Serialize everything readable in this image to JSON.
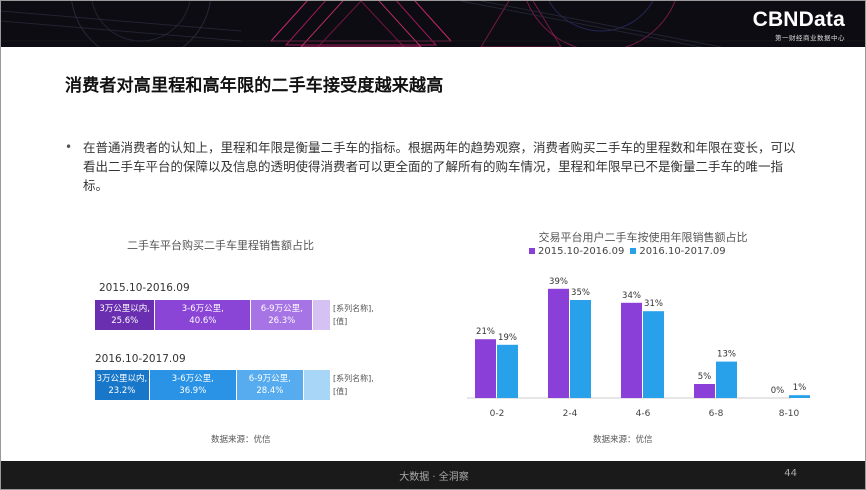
{
  "brand": {
    "name": "CBNData",
    "sub": "第一财经商业数据中心"
  },
  "title": "消费者对高里程和高年限的二手车接受度越来越高",
  "bullet": "在普通消费者的认知上，里程和年限是衡量二手车的指标。根据两年的趋势观察，消费者购买二手车的里程数和年限在变长，可以看出二手车平台的保障以及信息的透明使得消费者可以更全面的了解所有的购车情况，里程和年限早已不是衡量二手车的唯一指标。",
  "left_chart": {
    "title": "二手车平台购买二手车里程销售额占比",
    "source": "数据来源：优信"
  },
  "right_chart": {
    "title": "交易平台用户二手车按使用年限销售额占比",
    "source": "数据来源：优信"
  },
  "footer": {
    "center": "大数据 · 全洞察",
    "page": "44"
  },
  "colors": {
    "purple_1": "#6a2fb0",
    "purple_2": "#8a44d6",
    "purple_3": "#a774e6",
    "purple_4": "#d6c2f2",
    "blue_1": "#1877c9",
    "blue_2": "#2a93e6",
    "blue_3": "#56acee",
    "blue_4": "#a8d6f6",
    "bar_purple": "#8b3fd9",
    "bar_blue": "#28a0ea"
  },
  "chart_data": [
    {
      "type": "bar",
      "stacked": true,
      "orientation": "horizontal",
      "title": "二手车平台购买二手车里程销售额占比",
      "rows": [
        {
          "name": "2015.10-2016.09",
          "segments": [
            {
              "label": "3万公里以内,",
              "value": 25.6,
              "value_label": "25.6%"
            },
            {
              "label": "3-6万公里,",
              "value": 40.6,
              "value_label": "40.6%"
            },
            {
              "label": "6-9万公里,",
              "value": 26.3,
              "value_label": "26.3%"
            },
            {
              "label": "[系列名称],",
              "value": 7.5,
              "value_label": "[值]"
            }
          ]
        },
        {
          "name": "2016.10-2017.09",
          "segments": [
            {
              "label": "3万公里以内,",
              "value": 23.2,
              "value_label": "23.2%"
            },
            {
              "label": "3-6万公里,",
              "value": 36.9,
              "value_label": "36.9%"
            },
            {
              "label": "6-9万公里,",
              "value": 28.4,
              "value_label": "28.4%"
            },
            {
              "label": "[系列名称],",
              "value": 11.5,
              "value_label": "[值]"
            }
          ]
        }
      ]
    },
    {
      "type": "bar",
      "title": "交易平台用户二手车按使用年限销售额占比",
      "categories": [
        "0-2",
        "2-4",
        "4-6",
        "6-8",
        "8-10"
      ],
      "series": [
        {
          "name": "2015.10-2016.09",
          "values": [
            21,
            39,
            34,
            5,
            0
          ],
          "labels": [
            "21%",
            "39%",
            "34%",
            "5%",
            "0%"
          ]
        },
        {
          "name": "2016.10-2017.09",
          "values": [
            19,
            35,
            31,
            13,
            1
          ],
          "labels": [
            "19%",
            "35%",
            "31%",
            "13%",
            "1%"
          ]
        }
      ],
      "ylim": [
        0,
        45
      ],
      "grid": false,
      "legend": "top"
    }
  ]
}
